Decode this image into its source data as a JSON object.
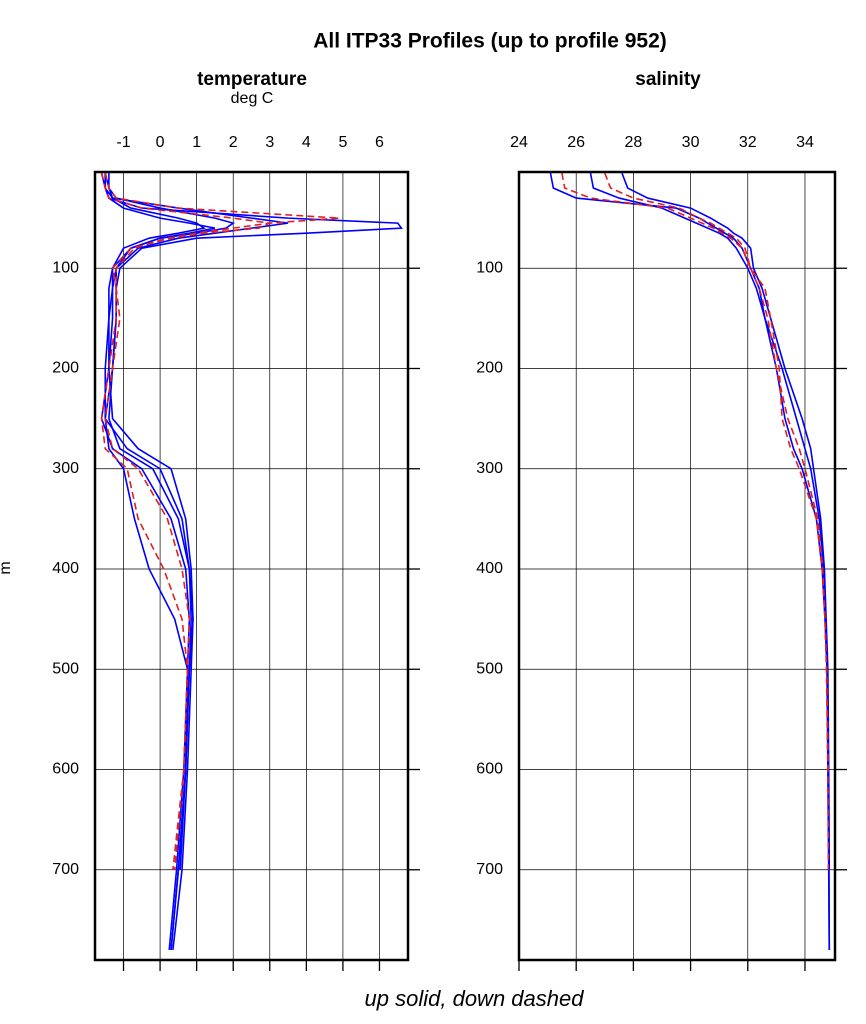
{
  "title": "All ITP33 Profiles (up to profile 952)",
  "footer": "up solid, down dashed",
  "chart_data": [
    {
      "type": "line",
      "title": "temperature",
      "subtitle": "deg C",
      "y_label": "m",
      "xlim": [
        -1.78,
        6.78
      ],
      "xticks": [
        -1,
        0,
        1,
        2,
        3,
        4,
        5,
        6
      ],
      "ylim": [
        4,
        790
      ],
      "yticks": [
        100,
        200,
        300,
        400,
        500,
        600,
        700
      ],
      "y_inverted": true,
      "grid": true,
      "depths": [
        5,
        20,
        30,
        40,
        50,
        55,
        60,
        65,
        70,
        80,
        100,
        120,
        150,
        200,
        250,
        280,
        300,
        350,
        400,
        450,
        500,
        600,
        700,
        780
      ],
      "series": [
        {
          "color": "#0000ff",
          "style": "solid",
          "values": [
            -1.5,
            -1.5,
            -1.4,
            -0.5,
            3.5,
            6.5,
            6.6,
            4,
            1,
            -0.5,
            -1.1,
            -1.2,
            -1.2,
            -1.3,
            -1.4,
            -1.1,
            -0.2,
            0.5,
            0.8,
            0.9,
            0.8,
            0.7,
            0.5,
            0.3
          ]
        },
        {
          "color": "#0000ff",
          "style": "solid",
          "values": [
            -1.6,
            -1.5,
            -1.3,
            0.5,
            2.5,
            3.5,
            2.5,
            1.5,
            0.5,
            -0.6,
            -1.2,
            -1.3,
            -1.3,
            -1.4,
            -1.6,
            -1.3,
            -0.5,
            0.3,
            0.7,
            0.8,
            0.75,
            0.65,
            0.45,
            0.25
          ]
        },
        {
          "color": "#0000ff",
          "style": "solid",
          "values": [
            -1.5,
            -1.4,
            -1.2,
            0,
            1.5,
            2,
            1.8,
            1,
            0,
            -0.8,
            -1.3,
            -1.3,
            -1.4,
            -1.5,
            -1.5,
            -0.9,
            0,
            0.6,
            0.8,
            0.85,
            0.8,
            0.7,
            0.55,
            null
          ]
        },
        {
          "color": "#0000ff",
          "style": "solid",
          "values": [
            -1.4,
            -1.4,
            -1.3,
            -0.8,
            0.5,
            1,
            1.2,
            0.5,
            -0.3,
            -1,
            -1.3,
            -1.4,
            -1.4,
            -1.4,
            -1.3,
            -0.6,
            0.3,
            0.7,
            0.85,
            0.9,
            0.85,
            0.75,
            0.6,
            0.35
          ]
        },
        {
          "color": "#0000ff",
          "style": "solid",
          "values": [
            -1.5,
            -1.5,
            -1.4,
            -1,
            0,
            0.8,
            1.5,
            0.8,
            0,
            -0.8,
            -1.2,
            -1.2,
            -1.2,
            -1.3,
            -1.5,
            -1.4,
            -1,
            -0.7,
            -0.3,
            0.4,
            0.75,
            0.7,
            0.5,
            0.3
          ]
        },
        {
          "color": "#e02020",
          "style": "dashed",
          "values": [
            -1.5,
            -1.4,
            -1.2,
            0.5,
            4.9,
            3,
            2,
            1,
            0.2,
            -0.7,
            -1.2,
            -1.2,
            -1.1,
            -1.3,
            -1.5,
            -1.3,
            -0.6,
            0.2,
            0.6,
            0.8,
            0.75,
            0.65,
            0.4,
            null
          ]
        },
        {
          "color": "#e02020",
          "style": "dashed",
          "values": [
            -1.6,
            -1.5,
            -1.4,
            -0.5,
            2,
            3,
            2.7,
            1.2,
            0.3,
            -0.8,
            -1.3,
            -1.2,
            -1.2,
            -1.4,
            -1.6,
            -1.5,
            -0.9,
            -0.6,
            0.1,
            0.6,
            0.75,
            0.65,
            0.35,
            null
          ]
        }
      ]
    },
    {
      "type": "line",
      "title": "salinity",
      "xlim": [
        24,
        35.05
      ],
      "xticks": [
        24,
        26,
        28,
        30,
        32,
        34
      ],
      "ylim": [
        4,
        790
      ],
      "yticks": [
        100,
        200,
        300,
        400,
        500,
        600,
        700
      ],
      "y_inverted": true,
      "grid": true,
      "depths": [
        5,
        20,
        30,
        40,
        50,
        55,
        60,
        65,
        70,
        80,
        100,
        120,
        150,
        200,
        250,
        280,
        300,
        350,
        400,
        450,
        500,
        600,
        700,
        780
      ],
      "series": [
        {
          "color": "#0000ff",
          "style": "solid",
          "values": [
            25.1,
            25.2,
            26,
            29.5,
            30.3,
            30.6,
            30.9,
            31.2,
            31.5,
            31.8,
            32.1,
            32.4,
            32.6,
            33.2,
            33.7,
            34,
            34.2,
            34.5,
            34.65,
            34.72,
            34.78,
            34.82,
            34.84,
            34.85
          ]
        },
        {
          "color": "#0000ff",
          "style": "solid",
          "values": [
            27.6,
            27.8,
            28.5,
            30,
            30.7,
            31,
            31.3,
            31.5,
            31.8,
            32.1,
            32.2,
            32.5,
            32.8,
            33.3,
            33.9,
            34.2,
            34.3,
            34.55,
            34.68,
            34.74,
            34.8,
            34.83,
            34.85,
            null
          ]
        },
        {
          "color": "#0000ff",
          "style": "solid",
          "values": [
            26.5,
            26.6,
            27.5,
            29,
            29.8,
            30.2,
            30.6,
            31,
            31.3,
            31.6,
            32,
            32.3,
            32.6,
            33,
            33.3,
            33.6,
            33.9,
            34.4,
            34.6,
            34.7,
            34.77,
            34.8,
            34.83,
            34.85
          ]
        },
        {
          "color": "#e02020",
          "style": "dashed",
          "values": [
            25.5,
            25.6,
            26.5,
            29.2,
            30,
            30.4,
            30.8,
            31.1,
            31.4,
            31.8,
            32.1,
            32.6,
            32.8,
            33.1,
            33.2,
            33.5,
            33.8,
            34.4,
            34.6,
            34.7,
            34.75,
            34.8,
            34.82,
            null
          ]
        },
        {
          "color": "#e02020",
          "style": "dashed",
          "values": [
            27,
            27.2,
            28,
            29.6,
            30.3,
            30.7,
            31,
            31.3,
            31.6,
            31.9,
            32.1,
            32.4,
            32.7,
            33,
            33.4,
            33.8,
            34,
            34.45,
            34.62,
            34.7,
            34.76,
            34.81,
            null,
            null
          ]
        }
      ]
    }
  ]
}
